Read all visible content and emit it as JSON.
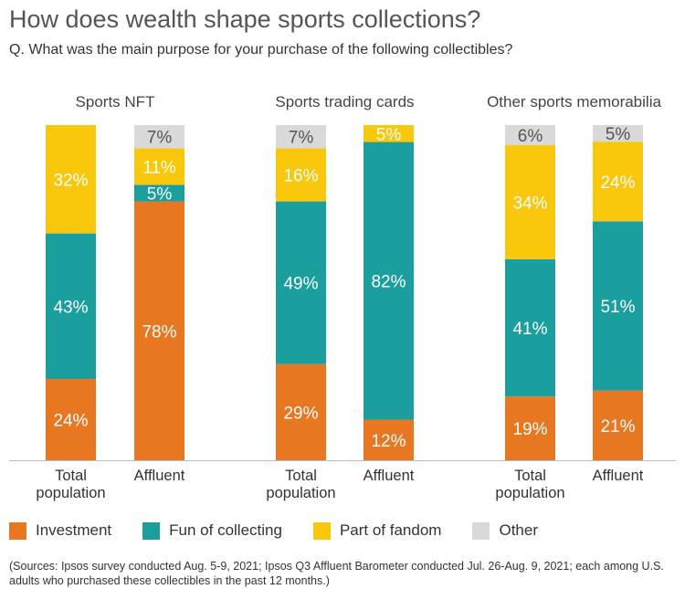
{
  "title": "How does wealth shape sports collections?",
  "subtitle": "Q. What was the main purpose for your purchase of the following collectibles?",
  "chart_data": {
    "type": "bar",
    "stacked": true,
    "series_names": [
      "Investment",
      "Fun of collecting",
      "Part of fandom",
      "Other"
    ],
    "colors": {
      "Investment": "#E87722",
      "Fun of collecting": "#1A9E9E",
      "Part of fandom": "#F9C70C",
      "Other": "#D9D9D9"
    },
    "groups": [
      {
        "title": "Sports NFT",
        "bars": [
          {
            "label": "Total population",
            "values": [
              24,
              43,
              32,
              null
            ]
          },
          {
            "label": "Affluent",
            "values": [
              78,
              5,
              11,
              7
            ]
          }
        ]
      },
      {
        "title": "Sports trading cards",
        "bars": [
          {
            "label": "Total population",
            "values": [
              29,
              49,
              16,
              7
            ]
          },
          {
            "label": "Affluent",
            "values": [
              12,
              82,
              5,
              null
            ]
          }
        ]
      },
      {
        "title": "Other sports memorabilia",
        "bars": [
          {
            "label": "Total population",
            "values": [
              19,
              41,
              34,
              6
            ]
          },
          {
            "label": "Affluent",
            "values": [
              21,
              51,
              24,
              5
            ]
          }
        ]
      }
    ],
    "legend_position": "bottom"
  },
  "source": "(Sources: Ipsos survey conducted Aug. 5-9, 2021; Ipsos Q3 Affluent Barometer conducted Jul. 26-Aug. 9, 2021; each among U.S. adults who purchased these collectibles in the past 12 months.)"
}
